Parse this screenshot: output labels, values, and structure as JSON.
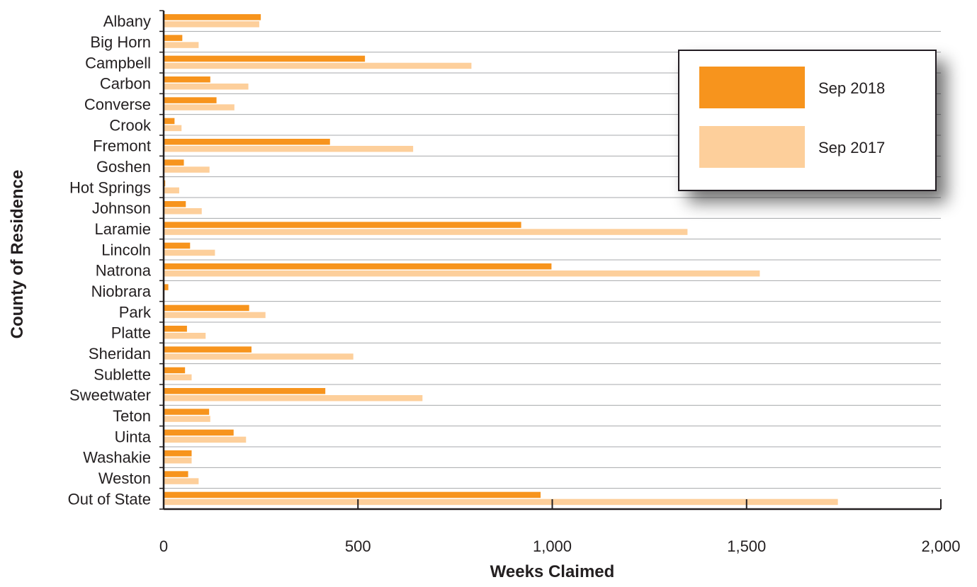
{
  "chart_data": {
    "type": "bar",
    "orientation": "horizontal",
    "title": "",
    "xlabel": "Weeks Claimed",
    "ylabel": "County of Residence",
    "xlim": [
      0,
      2000
    ],
    "xticks": [
      0,
      500,
      1000,
      1500,
      2000
    ],
    "xtick_labels": [
      "0",
      "500",
      "1,000",
      "1,500",
      "2,000"
    ],
    "grid": true,
    "legend_position": "top-right",
    "categories": [
      "Albany",
      "Big Horn",
      "Campbell",
      "Carbon",
      "Converse",
      "Crook",
      "Fremont",
      "Goshen",
      "Hot Springs",
      "Johnson",
      "Laramie",
      "Lincoln",
      "Natrona",
      "Niobrara",
      "Park",
      "Platte",
      "Sheridan",
      "Sublette",
      "Sweetwater",
      "Teton",
      "Uinta",
      "Washakie",
      "Weston",
      "Out of State"
    ],
    "series": [
      {
        "name": "Sep 2018",
        "color": "#f7941d",
        "values": [
          250,
          48,
          518,
          120,
          136,
          28,
          428,
          52,
          4,
          57,
          920,
          68,
          998,
          12,
          220,
          60,
          226,
          55,
          416,
          117,
          180,
          72,
          63,
          970
        ]
      },
      {
        "name": "Sep 2017",
        "color": "#fdcf9b",
        "values": [
          246,
          90,
          792,
          218,
          182,
          46,
          642,
          118,
          40,
          98,
          1348,
          132,
          1534,
          2,
          262,
          108,
          488,
          72,
          666,
          120,
          212,
          72,
          90,
          1735
        ]
      }
    ]
  }
}
